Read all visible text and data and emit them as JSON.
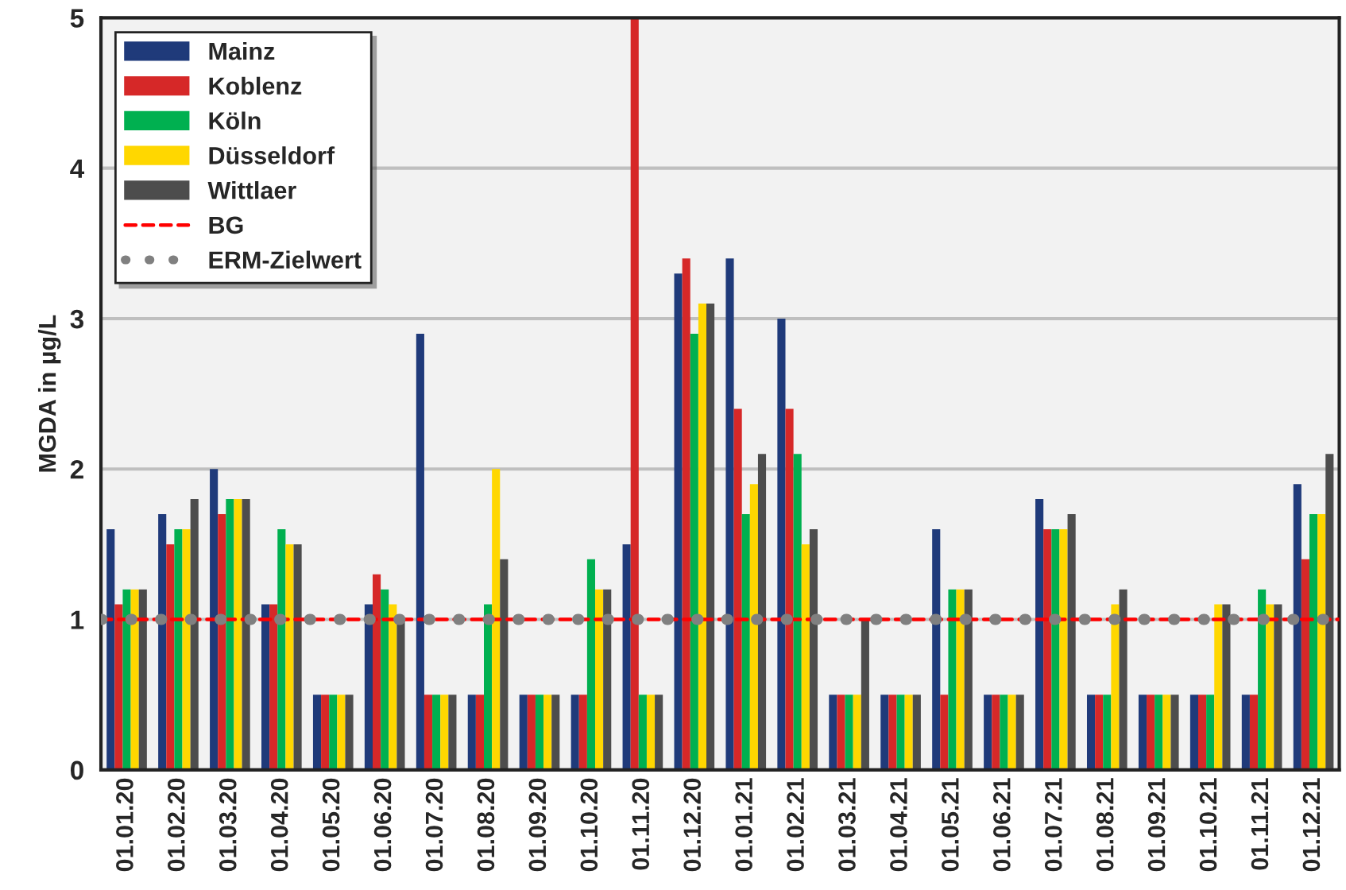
{
  "chart_data": {
    "type": "bar",
    "ylabel": "MGDA in µg/L",
    "categories": [
      "01.01.20",
      "01.02.20",
      "01.03.20",
      "01.04.20",
      "01.05.20",
      "01.06.20",
      "01.07.20",
      "01.08.20",
      "01.09.20",
      "01.10.20",
      "01.11.20",
      "01.12.20",
      "01.01.21",
      "01.02.21",
      "01.03.21",
      "01.04.21",
      "01.05.21",
      "01.06.21",
      "01.07.21",
      "01.08.21",
      "01.09.21",
      "01.10.21",
      "01.11.21",
      "01.12.21"
    ],
    "series": [
      {
        "name": "Mainz",
        "color": "#1f3a7a",
        "values": [
          1.6,
          1.7,
          2.0,
          1.1,
          0.5,
          1.1,
          2.9,
          0.5,
          0.5,
          0.5,
          1.5,
          3.3,
          3.4,
          3.0,
          0.5,
          0.5,
          1.6,
          0.5,
          1.8,
          0.5,
          0.5,
          0.5,
          0.5,
          1.9
        ]
      },
      {
        "name": "Koblenz",
        "color": "#d62828",
        "values": [
          1.1,
          1.5,
          1.7,
          1.1,
          0.5,
          1.3,
          0.5,
          0.5,
          0.5,
          0.5,
          5.0,
          3.4,
          2.4,
          2.4,
          0.5,
          0.5,
          0.5,
          0.5,
          1.6,
          0.5,
          0.5,
          0.5,
          0.5,
          1.4
        ]
      },
      {
        "name": "Köln",
        "color": "#00b050",
        "values": [
          1.2,
          1.6,
          1.8,
          1.6,
          0.5,
          1.2,
          0.5,
          1.1,
          0.5,
          1.4,
          0.5,
          2.9,
          1.7,
          2.1,
          0.5,
          0.5,
          1.2,
          0.5,
          1.6,
          0.5,
          0.5,
          0.5,
          1.2,
          1.7
        ]
      },
      {
        "name": "Düsseldorf",
        "color": "#ffd700",
        "values": [
          1.2,
          1.6,
          1.8,
          1.5,
          0.5,
          1.1,
          0.5,
          2.0,
          0.5,
          1.2,
          0.5,
          3.1,
          1.9,
          1.5,
          0.5,
          0.5,
          1.2,
          0.5,
          1.6,
          1.1,
          0.5,
          1.1,
          1.1,
          1.7
        ]
      },
      {
        "name": "Wittlaer",
        "color": "#4d4d4d",
        "values": [
          1.2,
          1.8,
          1.8,
          1.5,
          0.5,
          1.0,
          0.5,
          1.4,
          0.5,
          1.2,
          0.5,
          3.1,
          2.1,
          1.6,
          1.0,
          0.5,
          1.2,
          0.5,
          1.7,
          1.2,
          0.5,
          1.1,
          1.1,
          2.1
        ]
      }
    ],
    "ref_lines": [
      {
        "axis": "y",
        "value": 1,
        "label": "BG",
        "color": "#ff0000",
        "line_style": "dashed"
      },
      {
        "axis": "y",
        "value": 1,
        "label": "ERM-Zielwert",
        "color": "#808080",
        "line_style": "dotted"
      }
    ],
    "ylim": [
      0,
      5
    ],
    "yticks": [
      0,
      1,
      2,
      3,
      4,
      5
    ],
    "grid": "y",
    "legend": "top left"
  }
}
